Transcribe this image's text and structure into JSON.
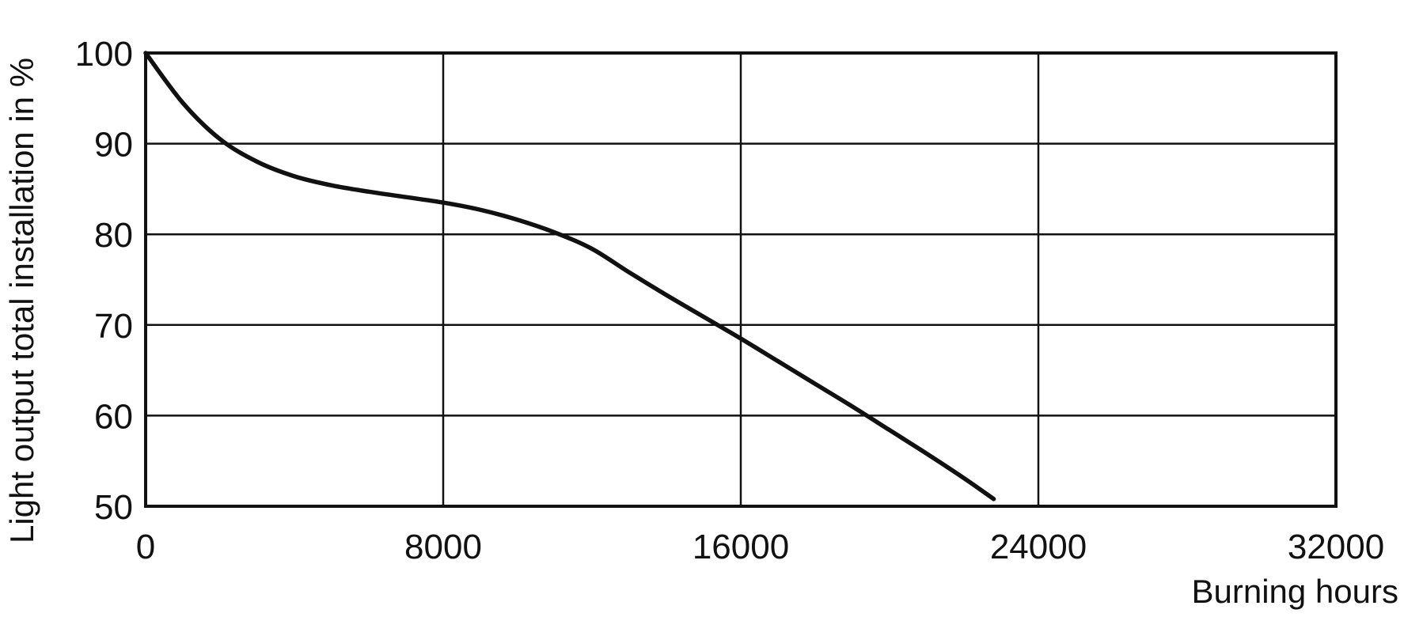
{
  "chart_data": {
    "type": "line",
    "title": "",
    "xlabel": "Burning hours",
    "ylabel": "Light output total installation in %",
    "xlim": [
      0,
      32000
    ],
    "ylim": [
      50,
      100
    ],
    "x_ticks": [
      0,
      8000,
      16000,
      24000,
      32000
    ],
    "y_ticks": [
      50,
      60,
      70,
      80,
      90,
      100
    ],
    "x_tick_labels": [
      "0",
      "8000",
      "16000",
      "24000",
      "32000"
    ],
    "y_tick_labels": [
      "50",
      "60",
      "70",
      "80",
      "90",
      "100"
    ],
    "grid": true,
    "legend": "none",
    "colors": {
      "line": "#111111",
      "grid": "#111111",
      "background": "#ffffff"
    },
    "series": [
      {
        "x": [
          0,
          1000,
          2000,
          3000,
          4000,
          5000,
          6000,
          7000,
          8000,
          9000,
          10000,
          11000,
          12000,
          13000,
          14000,
          15000,
          16000,
          17000,
          18000,
          19000,
          20000,
          21000,
          22000,
          22800
        ],
        "values": [
          100,
          94.5,
          90.5,
          88,
          86.4,
          85.4,
          84.7,
          84.1,
          83.5,
          82.7,
          81.6,
          80.2,
          78.4,
          75.8,
          73.3,
          70.9,
          68.5,
          66,
          63.5,
          61,
          58.4,
          55.8,
          53.1,
          50.8
        ]
      }
    ]
  }
}
